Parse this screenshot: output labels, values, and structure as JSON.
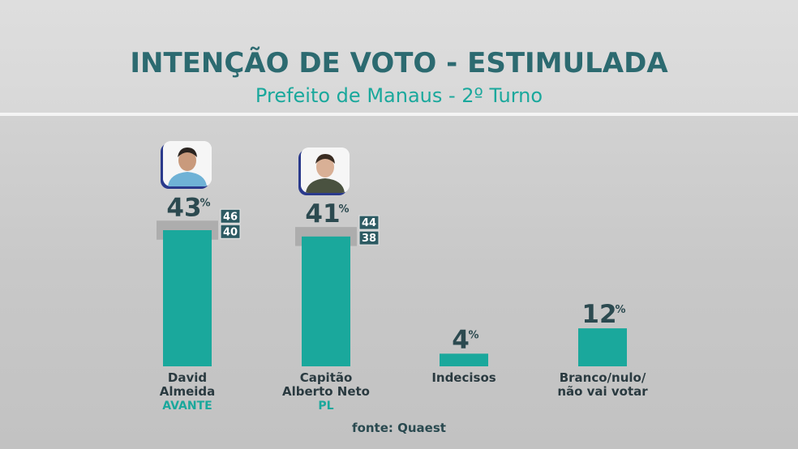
{
  "header": {
    "title": "INTENÇÃO DE VOTO - ESTIMULADA",
    "subtitle": "Prefeito de Manaus - 2º Turno"
  },
  "source_label": "fonte: Quaest",
  "colors": {
    "bar": "#1aa89c",
    "title": "#2c6a70",
    "value_text": "#2c4a50",
    "party_text": "#1aa89c",
    "range_box": "#2c5a62",
    "range_shade": "#a8a8a8"
  },
  "chart_data": {
    "type": "bar",
    "unit": "%",
    "categories": [
      {
        "name_lines": [
          "David",
          "Almeida"
        ],
        "party": "AVANTE",
        "value": 43,
        "range_high": 46,
        "range_low": 40,
        "photo": "candidate-photo"
      },
      {
        "name_lines": [
          "Capitão",
          "Alberto Neto"
        ],
        "party": "PL",
        "value": 41,
        "range_high": 44,
        "range_low": 38,
        "photo": "candidate-photo"
      },
      {
        "name_lines": [
          "Indecisos"
        ],
        "party": "",
        "value": 4
      },
      {
        "name_lines": [
          "Branco/nulo/",
          "não vai votar"
        ],
        "party": "",
        "value": 12
      }
    ],
    "ylim": [
      0,
      43
    ]
  }
}
